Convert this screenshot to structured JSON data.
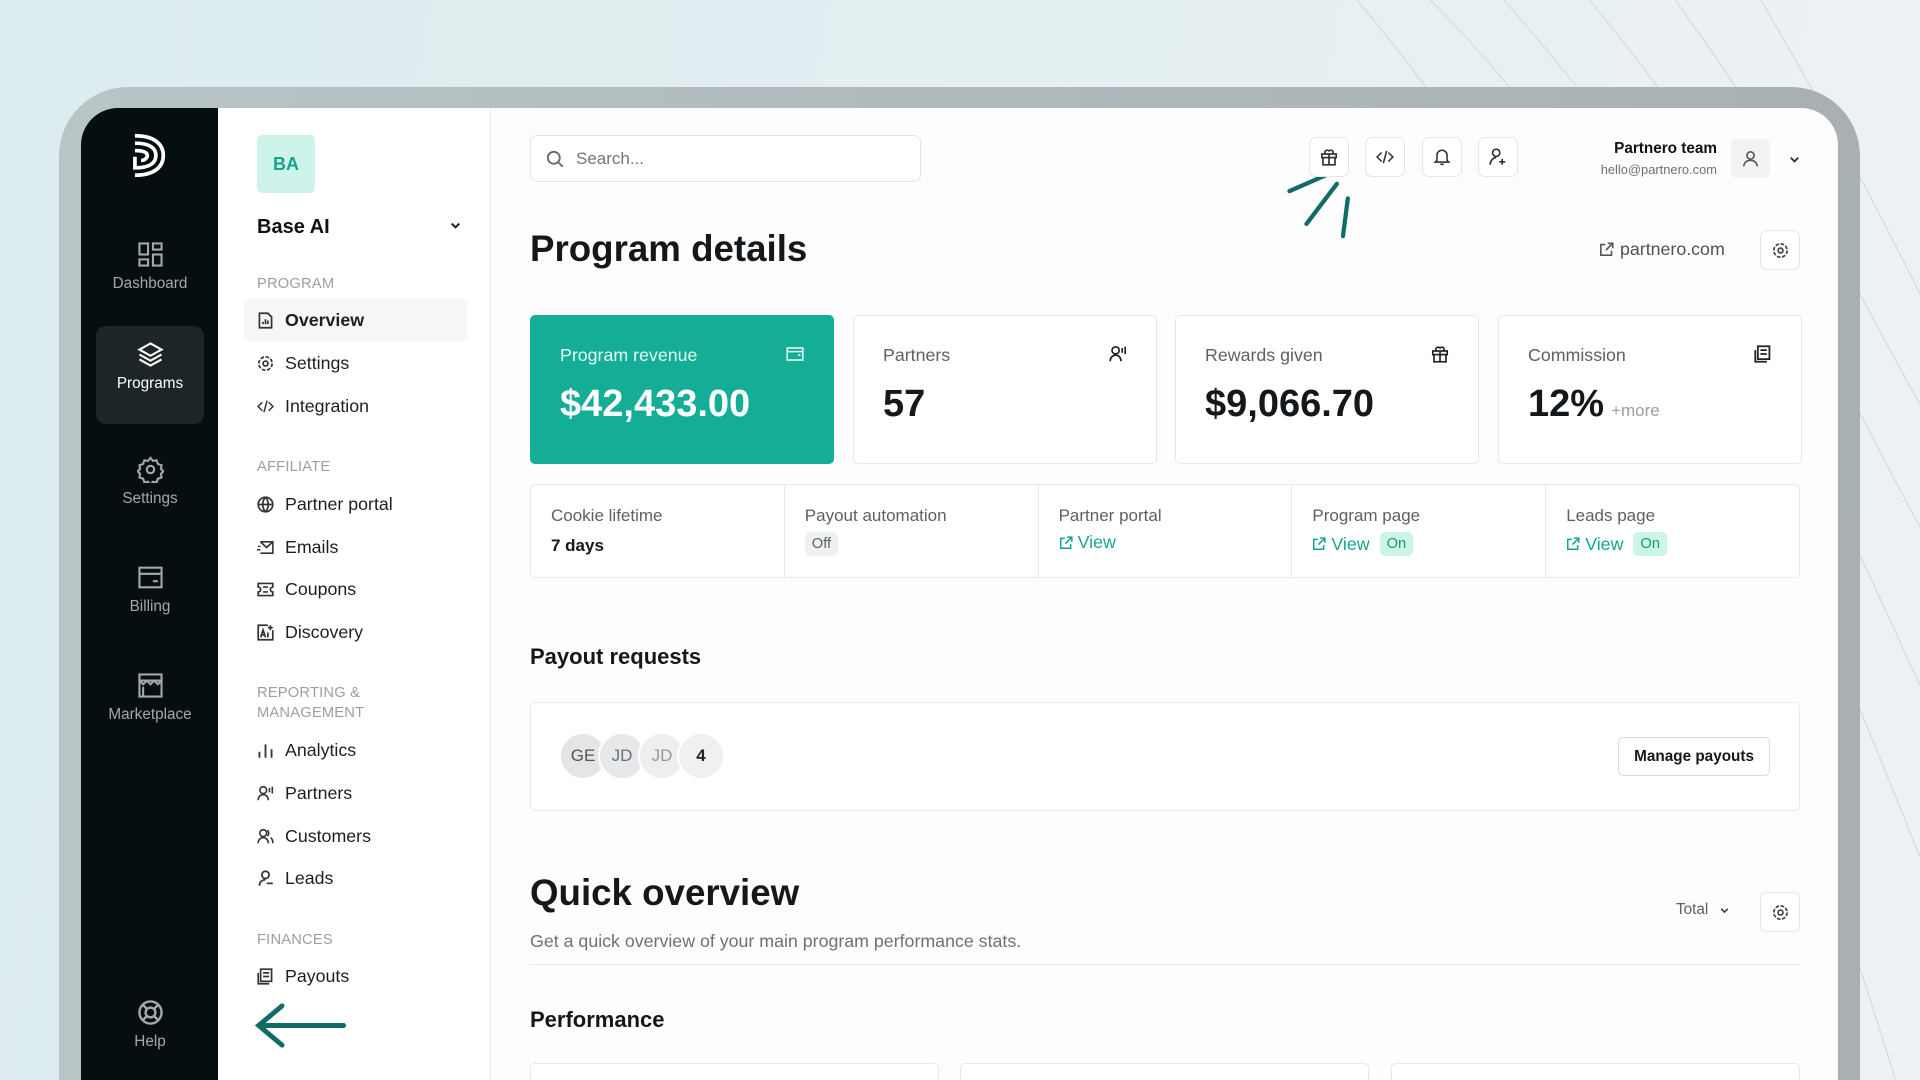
{
  "colors": {
    "accent": "#14ad96",
    "rail": "#050f0f",
    "annotation": "#136b66"
  },
  "rail": {
    "items": [
      {
        "label": "Dashboard",
        "icon": "grid-icon"
      },
      {
        "label": "Programs",
        "icon": "layers-icon",
        "active": true
      },
      {
        "label": "Settings",
        "icon": "gear-icon"
      },
      {
        "label": "Billing",
        "icon": "card-icon"
      },
      {
        "label": "Marketplace",
        "icon": "store-icon"
      }
    ],
    "help": "Help"
  },
  "nav": {
    "org_initials": "BA",
    "org_name": "Base AI",
    "sections": {
      "program": "PROGRAM",
      "affiliate": "AFFILIATE",
      "reporting": "REPORTING & MANAGEMENT",
      "finances": "FINANCES"
    },
    "items": {
      "overview": "Overview",
      "settings": "Settings",
      "integration": "Integration",
      "partner_portal": "Partner portal",
      "emails": "Emails",
      "coupons": "Coupons",
      "discovery": "Discovery",
      "analytics": "Analytics",
      "partners": "Partners",
      "customers": "Customers",
      "leads": "Leads",
      "payouts": "Payouts"
    }
  },
  "header": {
    "search_placeholder": "Search...",
    "user_name": "Partnero team",
    "user_email": "hello@partnero.com"
  },
  "page": {
    "title": "Program details",
    "site_link": "partnero.com"
  },
  "stats": [
    {
      "label": "Program revenue",
      "value": "$42,433.00"
    },
    {
      "label": "Partners",
      "value": "57"
    },
    {
      "label": "Rewards given",
      "value": "$9,066.70"
    },
    {
      "label": "Commission",
      "value": "12%",
      "extra": "+more"
    }
  ],
  "info": {
    "cookie": {
      "label": "Cookie lifetime",
      "value": "7 days"
    },
    "payout_automation": {
      "label": "Payout automation",
      "status": "Off"
    },
    "partner_portal": {
      "label": "Partner portal",
      "link": "View"
    },
    "program_page": {
      "label": "Program page",
      "link": "View",
      "status": "On"
    },
    "leads_page": {
      "label": "Leads page",
      "link": "View",
      "status": "On"
    }
  },
  "payout_requests": {
    "title": "Payout requests",
    "avatars": [
      "GE",
      "JD",
      "JD"
    ],
    "count": "4",
    "button": "Manage payouts"
  },
  "quick_overview": {
    "title": "Quick overview",
    "subtitle": "Get a quick overview of your main program performance stats.",
    "period": "Total",
    "performance": "Performance"
  }
}
